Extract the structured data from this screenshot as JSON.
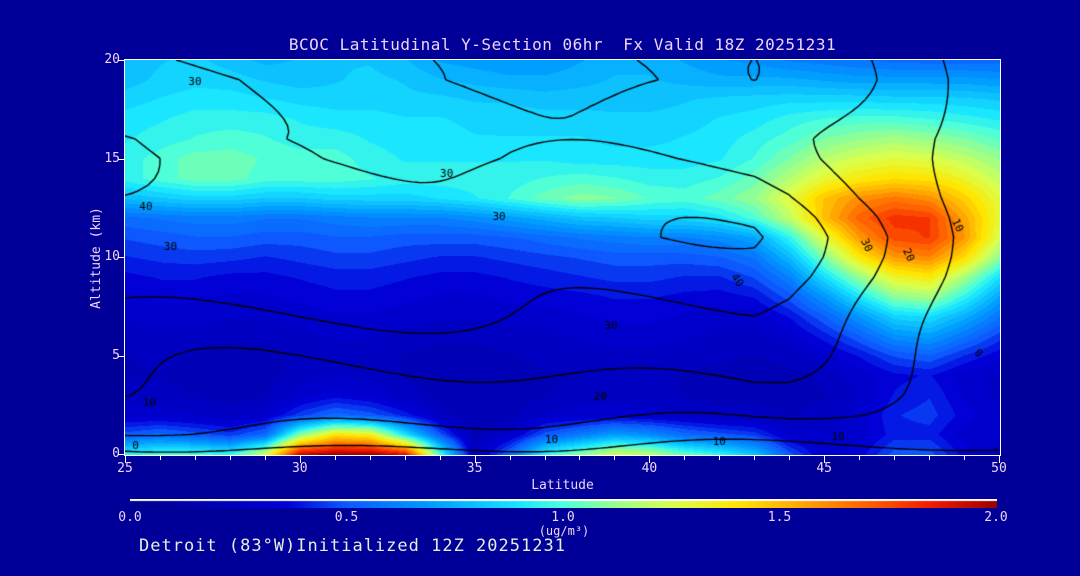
{
  "header": {
    "title": "BCOC Latitudinal Y-Section 06hr  Fx Valid 18Z 20251231",
    "title_color": "#eed5f5"
  },
  "footer": {
    "text": "Detroit (83°W)Initialized 12Z 20251231",
    "color": "#e4efe2"
  },
  "colors": {
    "background": "#000099",
    "axis_line": "#ffffff",
    "contour_line": "#000000",
    "axis_text": "#eed5f5"
  },
  "chart_data": {
    "type": "heatmap",
    "title": "BCOC Latitudinal Y-Section 06hr  Fx Valid 18Z 20251231",
    "xlabel": "Latitude",
    "ylabel": "Altitude (km)",
    "x_range": [
      25,
      50
    ],
    "y_range": [
      0,
      20
    ],
    "x_ticks": [
      25,
      30,
      35,
      40,
      45,
      50
    ],
    "x_minor_step": 1,
    "y_ticks": [
      0,
      5,
      10,
      15,
      20
    ],
    "grid": false,
    "colorbar": {
      "min": 0.0,
      "max": 2.0,
      "tick_labels": [
        "0.0",
        "0.5",
        "1.0",
        "1.5",
        "2.0"
      ],
      "units": "(ug/m³)",
      "stops": [
        [
          0.0,
          "#00008C"
        ],
        [
          0.18,
          "#0000D9"
        ],
        [
          0.25,
          "#0D59FF"
        ],
        [
          0.35,
          "#009EFF"
        ],
        [
          0.45,
          "#1AE6FF"
        ],
        [
          0.5,
          "#4DFFD9"
        ],
        [
          0.55,
          "#8CFF99"
        ],
        [
          0.625,
          "#D9FF4D"
        ],
        [
          0.7,
          "#FFE600"
        ],
        [
          0.775,
          "#FFA600"
        ],
        [
          0.85,
          "#FF6100"
        ],
        [
          0.925,
          "#F21A00"
        ],
        [
          1.0,
          "#990000"
        ]
      ]
    },
    "fill_grid": {
      "units": "ug/m3",
      "lat_start": 25,
      "lat_step": 1,
      "alt_start": 0,
      "alt_step": 1,
      "quantize_step": 0.05,
      "values": [
        [
          0.95,
          1.0,
          1.0,
          0.95,
          1.25,
          1.95,
          2.0,
          2.0,
          1.9,
          1.0,
          0.25,
          0.55,
          0.95,
          1.1,
          1.25,
          1.2,
          1.05,
          0.95,
          0.8,
          0.5,
          0.3,
          0.35,
          0.5,
          0.5,
          0.35,
          0.25
        ],
        [
          0.5,
          0.55,
          0.5,
          0.45,
          0.55,
          1.1,
          1.4,
          1.35,
          0.9,
          0.5,
          0.2,
          0.3,
          0.5,
          0.6,
          0.7,
          0.65,
          0.55,
          0.5,
          0.45,
          0.3,
          0.28,
          0.3,
          0.4,
          0.4,
          0.3,
          0.28
        ],
        [
          0.3,
          0.3,
          0.28,
          0.25,
          0.3,
          0.45,
          0.55,
          0.5,
          0.4,
          0.25,
          0.18,
          0.2,
          0.28,
          0.3,
          0.32,
          0.3,
          0.28,
          0.25,
          0.25,
          0.22,
          0.25,
          0.3,
          0.42,
          0.45,
          0.35,
          0.28
        ],
        [
          0.25,
          0.25,
          0.22,
          0.2,
          0.22,
          0.3,
          0.35,
          0.32,
          0.25,
          0.2,
          0.18,
          0.2,
          0.22,
          0.25,
          0.25,
          0.25,
          0.22,
          0.2,
          0.2,
          0.2,
          0.22,
          0.28,
          0.38,
          0.42,
          0.32,
          0.26
        ],
        [
          0.22,
          0.22,
          0.2,
          0.2,
          0.2,
          0.25,
          0.28,
          0.26,
          0.22,
          0.2,
          0.18,
          0.2,
          0.22,
          0.22,
          0.24,
          0.24,
          0.22,
          0.2,
          0.2,
          0.2,
          0.24,
          0.3,
          0.36,
          0.38,
          0.3,
          0.26
        ],
        [
          0.22,
          0.24,
          0.22,
          0.2,
          0.2,
          0.24,
          0.26,
          0.25,
          0.22,
          0.2,
          0.2,
          0.22,
          0.24,
          0.25,
          0.26,
          0.26,
          0.25,
          0.24,
          0.22,
          0.25,
          0.3,
          0.38,
          0.48,
          0.52,
          0.42,
          0.34
        ],
        [
          0.25,
          0.26,
          0.25,
          0.24,
          0.24,
          0.26,
          0.28,
          0.28,
          0.26,
          0.24,
          0.24,
          0.25,
          0.26,
          0.28,
          0.3,
          0.3,
          0.28,
          0.26,
          0.26,
          0.3,
          0.4,
          0.52,
          0.66,
          0.7,
          0.58,
          0.45
        ],
        [
          0.28,
          0.3,
          0.3,
          0.28,
          0.28,
          0.3,
          0.32,
          0.32,
          0.3,
          0.28,
          0.28,
          0.3,
          0.3,
          0.32,
          0.34,
          0.34,
          0.32,
          0.3,
          0.3,
          0.38,
          0.52,
          0.68,
          0.85,
          0.88,
          0.75,
          0.58
        ],
        [
          0.32,
          0.34,
          0.34,
          0.32,
          0.32,
          0.34,
          0.36,
          0.36,
          0.34,
          0.32,
          0.32,
          0.34,
          0.35,
          0.36,
          0.38,
          0.38,
          0.36,
          0.35,
          0.38,
          0.5,
          0.68,
          0.9,
          1.1,
          1.15,
          0.95,
          0.72
        ],
        [
          0.36,
          0.38,
          0.38,
          0.36,
          0.36,
          0.38,
          0.4,
          0.4,
          0.38,
          0.36,
          0.36,
          0.38,
          0.4,
          0.42,
          0.44,
          0.44,
          0.42,
          0.42,
          0.48,
          0.62,
          0.88,
          1.12,
          1.32,
          1.38,
          1.15,
          0.88
        ],
        [
          0.42,
          0.44,
          0.45,
          0.44,
          0.42,
          0.44,
          0.46,
          0.46,
          0.44,
          0.42,
          0.42,
          0.44,
          0.46,
          0.48,
          0.5,
          0.5,
          0.5,
          0.52,
          0.58,
          0.78,
          1.08,
          1.38,
          1.58,
          1.62,
          1.42,
          1.1
        ],
        [
          0.48,
          0.5,
          0.52,
          0.52,
          0.5,
          0.5,
          0.52,
          0.52,
          0.5,
          0.5,
          0.5,
          0.52,
          0.55,
          0.58,
          0.6,
          0.62,
          0.62,
          0.65,
          0.72,
          0.95,
          1.28,
          1.58,
          1.75,
          1.78,
          1.58,
          1.25
        ],
        [
          0.56,
          0.58,
          0.6,
          0.6,
          0.58,
          0.58,
          0.6,
          0.62,
          0.62,
          0.62,
          0.65,
          0.7,
          0.75,
          0.8,
          0.82,
          0.85,
          0.85,
          0.9,
          1.0,
          1.2,
          1.5,
          1.7,
          1.8,
          1.78,
          1.55,
          1.3
        ],
        [
          0.78,
          0.82,
          0.85,
          0.85,
          0.82,
          0.82,
          0.85,
          0.85,
          0.85,
          0.88,
          0.92,
          0.98,
          1.05,
          1.1,
          1.08,
          1.02,
          1.0,
          1.05,
          1.12,
          1.28,
          1.48,
          1.6,
          1.65,
          1.6,
          1.45,
          1.28
        ],
        [
          0.95,
          1.0,
          1.05,
          1.05,
          1.0,
          1.0,
          1.0,
          0.98,
          0.95,
          0.95,
          0.95,
          0.95,
          0.98,
          1.0,
          0.98,
          0.95,
          0.95,
          0.98,
          1.05,
          1.18,
          1.3,
          1.38,
          1.42,
          1.4,
          1.32,
          1.2
        ],
        [
          0.95,
          1.0,
          1.05,
          1.05,
          1.02,
          1.0,
          1.0,
          0.95,
          0.92,
          0.92,
          0.92,
          0.92,
          0.92,
          0.9,
          0.9,
          0.9,
          0.9,
          0.92,
          0.98,
          1.08,
          1.18,
          1.25,
          1.28,
          1.26,
          1.2,
          1.12
        ],
        [
          0.92,
          0.95,
          0.98,
          1.0,
          0.98,
          0.95,
          0.95,
          0.92,
          0.9,
          0.9,
          0.88,
          0.88,
          0.88,
          0.88,
          0.86,
          0.86,
          0.88,
          0.9,
          0.95,
          1.0,
          1.08,
          1.12,
          1.15,
          1.12,
          1.08,
          1.02
        ],
        [
          0.9,
          0.92,
          0.95,
          0.95,
          0.95,
          0.92,
          0.9,
          0.9,
          0.88,
          0.88,
          0.86,
          0.85,
          0.85,
          0.85,
          0.84,
          0.84,
          0.85,
          0.88,
          0.9,
          0.95,
          0.98,
          1.0,
          1.0,
          0.98,
          0.95,
          0.92
        ],
        [
          0.85,
          0.88,
          0.9,
          0.9,
          0.88,
          0.86,
          0.85,
          0.85,
          0.84,
          0.84,
          0.82,
          0.82,
          0.8,
          0.8,
          0.8,
          0.8,
          0.82,
          0.84,
          0.85,
          0.86,
          0.86,
          0.86,
          0.85,
          0.85,
          0.84,
          0.82
        ],
        [
          0.8,
          0.84,
          0.86,
          0.85,
          0.82,
          0.8,
          0.82,
          0.84,
          0.82,
          0.78,
          0.76,
          0.74,
          0.74,
          0.76,
          0.78,
          0.78,
          0.76,
          0.74,
          0.74,
          0.74,
          0.72,
          0.7,
          0.7,
          0.7,
          0.7,
          0.68
        ],
        [
          0.78,
          0.82,
          0.84,
          0.8,
          0.76,
          0.78,
          0.82,
          0.82,
          0.78,
          0.72,
          0.7,
          0.68,
          0.68,
          0.72,
          0.76,
          0.76,
          0.72,
          0.68,
          0.66,
          0.62,
          0.6,
          0.58,
          0.56,
          0.55,
          0.55,
          0.55
        ]
      ]
    },
    "contour_overlay": {
      "levels": [
        0,
        10,
        20,
        30,
        40,
        50
      ],
      "profile_alt": [
        0,
        1,
        2,
        3,
        4,
        5,
        6,
        7,
        8,
        9,
        10,
        11,
        12,
        13,
        14,
        15,
        16,
        17,
        18,
        19,
        20
      ],
      "profile_val": [
        -4,
        7,
        13,
        17,
        20,
        23,
        26,
        29,
        32,
        35,
        37,
        38,
        36,
        33,
        31,
        29,
        28,
        29,
        30,
        31,
        30
      ],
      "taper_lat": [
        25,
        43,
        44,
        45,
        46,
        47,
        48,
        49,
        50
      ],
      "taper_val": [
        1,
        1,
        0.93,
        0.79,
        0.65,
        0.51,
        0.37,
        0.22,
        0.07
      ],
      "wiggle": {
        "a1": 2.5,
        "f1": 0.55,
        "p1": 0.35,
        "a2": 1.8,
        "f2": 0.8,
        "p2": 0.25
      },
      "labels": [
        {
          "t": "30",
          "lat": 27.0,
          "alt": 18.9,
          "rot": 0
        },
        {
          "t": "40",
          "lat": 25.6,
          "alt": 12.55,
          "rot": 0
        },
        {
          "t": "30",
          "lat": 26.3,
          "alt": 10.5,
          "rot": 0
        },
        {
          "t": "10",
          "lat": 25.7,
          "alt": 2.6,
          "rot": 0
        },
        {
          "t": "0",
          "lat": 25.3,
          "alt": 0.4,
          "rot": 0
        },
        {
          "t": "30",
          "lat": 34.2,
          "alt": 14.2,
          "rot": 0
        },
        {
          "t": "30",
          "lat": 35.7,
          "alt": 12.0,
          "rot": 0
        },
        {
          "t": "30",
          "lat": 38.9,
          "alt": 6.5,
          "rot": 0
        },
        {
          "t": "20",
          "lat": 38.6,
          "alt": 2.9,
          "rot": 0
        },
        {
          "t": "10",
          "lat": 37.2,
          "alt": 0.7,
          "rot": 0
        },
        {
          "t": "10",
          "lat": 42.0,
          "alt": 0.6,
          "rot": 0
        },
        {
          "t": "10",
          "lat": 45.4,
          "alt": 0.85,
          "rot": 0
        },
        {
          "t": "40",
          "lat": 42.5,
          "alt": 8.8,
          "rot": 55
        },
        {
          "t": "30",
          "lat": 46.2,
          "alt": 10.6,
          "rot": 65
        },
        {
          "t": "20",
          "lat": 47.4,
          "alt": 10.1,
          "rot": 65
        },
        {
          "t": "10",
          "lat": 48.8,
          "alt": 11.6,
          "rot": 65
        },
        {
          "t": "0",
          "lat": 49.4,
          "alt": 5.1,
          "rot": 45
        }
      ]
    }
  }
}
